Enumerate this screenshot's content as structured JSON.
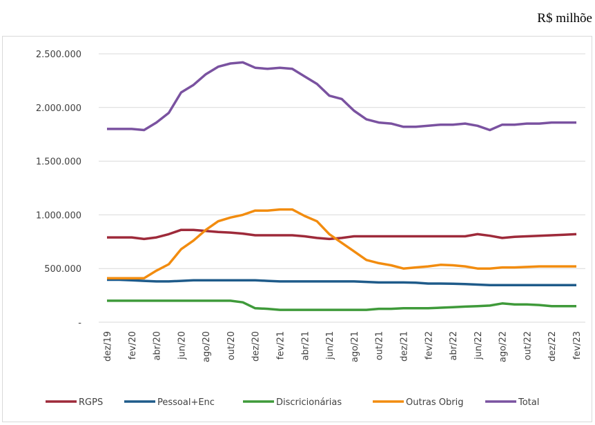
{
  "chart_data": {
    "type": "line",
    "annotation": "R$ milhõe",
    "categories": [
      "dez/19",
      null,
      "fev/20",
      null,
      "abr/20",
      null,
      "jun/20",
      null,
      "ago/20",
      null,
      "out/20",
      null,
      "dez/20",
      null,
      "fev/21",
      null,
      "abr/21",
      null,
      "jun/21",
      null,
      "ago/21",
      null,
      "out/21",
      null,
      "dez/21",
      null,
      "fev/22",
      null,
      "abr/22",
      null,
      "jun/22",
      null,
      "ago/22",
      null,
      "out/22",
      null,
      "dez/22",
      null,
      "fev/23"
    ],
    "series": [
      {
        "name": "RGPS",
        "color": "#9e2a3a",
        "values": [
          790000,
          790000,
          790000,
          775000,
          790000,
          820000,
          860000,
          860000,
          850000,
          840000,
          835000,
          825000,
          810000,
          810000,
          810000,
          810000,
          800000,
          785000,
          775000,
          785000,
          800000,
          800000,
          800000,
          800000,
          800000,
          800000,
          800000,
          800000,
          800000,
          800000,
          820000,
          805000,
          785000,
          795000,
          800000,
          805000,
          810000,
          815000,
          820000
        ]
      },
      {
        "name": "Pessoal+Enc",
        "color": "#1f5b8a",
        "values": [
          395000,
          395000,
          390000,
          385000,
          380000,
          380000,
          385000,
          390000,
          390000,
          390000,
          390000,
          390000,
          390000,
          385000,
          380000,
          380000,
          380000,
          380000,
          380000,
          380000,
          380000,
          375000,
          370000,
          370000,
          370000,
          368000,
          360000,
          360000,
          358000,
          355000,
          350000,
          345000,
          345000,
          345000,
          345000,
          345000,
          345000,
          345000,
          345000
        ]
      },
      {
        "name": "Discricionárias",
        "color": "#3f9a3a",
        "values": [
          200000,
          200000,
          200000,
          200000,
          200000,
          200000,
          200000,
          200000,
          200000,
          200000,
          200000,
          185000,
          130000,
          125000,
          115000,
          115000,
          115000,
          115000,
          115000,
          115000,
          115000,
          115000,
          125000,
          125000,
          130000,
          130000,
          130000,
          135000,
          140000,
          145000,
          150000,
          155000,
          175000,
          165000,
          165000,
          160000,
          150000,
          150000,
          150000
        ]
      },
      {
        "name": "Outras Obrig",
        "color": "#f28c0f",
        "values": [
          410000,
          410000,
          410000,
          410000,
          480000,
          540000,
          680000,
          760000,
          860000,
          940000,
          975000,
          1000000,
          1040000,
          1040000,
          1050000,
          1050000,
          990000,
          940000,
          820000,
          740000,
          660000,
          580000,
          550000,
          530000,
          500000,
          510000,
          520000,
          535000,
          530000,
          520000,
          500000,
          500000,
          510000,
          510000,
          515000,
          520000,
          520000,
          520000,
          520000
        ]
      },
      {
        "name": "Total",
        "color": "#7a52a0",
        "values": [
          1800000,
          1800000,
          1800000,
          1790000,
          1860000,
          1950000,
          2140000,
          2210000,
          2310000,
          2380000,
          2410000,
          2420000,
          2370000,
          2360000,
          2370000,
          2360000,
          2290000,
          2220000,
          2110000,
          2080000,
          1970000,
          1890000,
          1860000,
          1850000,
          1820000,
          1820000,
          1830000,
          1840000,
          1840000,
          1850000,
          1830000,
          1790000,
          1840000,
          1840000,
          1850000,
          1850000,
          1860000,
          1860000,
          1860000
        ]
      }
    ],
    "ylim": [
      0,
      2500000
    ],
    "yticks": [
      {
        "value": 0,
        "label": "-"
      },
      {
        "value": 500000,
        "label": "500.000"
      },
      {
        "value": 1000000,
        "label": "1.000.000"
      },
      {
        "value": 1500000,
        "label": "1.500.000"
      },
      {
        "value": 2000000,
        "label": "2.000.000"
      },
      {
        "value": 2500000,
        "label": "2.500.000"
      }
    ],
    "grid": true,
    "legend": "bottom"
  }
}
